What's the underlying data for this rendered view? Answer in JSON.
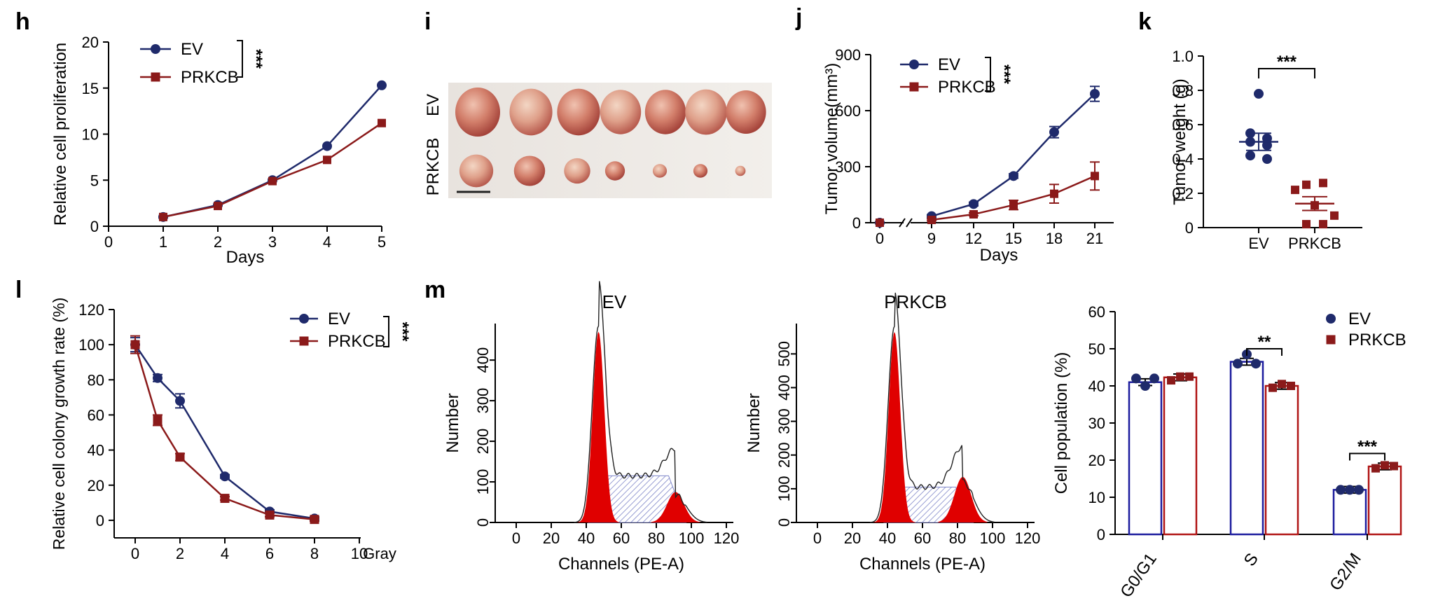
{
  "colors": {
    "ev": "#1f2a6b",
    "prkcb": "#8b1a1a",
    "ev_bar": "#1c1c9e",
    "prkcb_bar": "#b01414",
    "red_fill": "#e00000",
    "hatch": "#7f86c9"
  },
  "panels": {
    "h": {
      "label": "h",
      "type": "line",
      "xlabel": "Days",
      "ylabel": "Relative cell proliferation",
      "xlim": [
        0,
        5
      ],
      "ylim": [
        0,
        20
      ],
      "xticks": [
        "0",
        "1",
        "2",
        "3",
        "4",
        "5"
      ],
      "yticks": [
        "0",
        "5",
        "10",
        "15",
        "20"
      ],
      "legend": [
        "EV",
        "PRKCB"
      ],
      "significance": "***",
      "series": [
        {
          "name": "EV",
          "x": [
            1,
            2,
            3,
            4,
            5
          ],
          "y": [
            1.0,
            2.3,
            5.0,
            8.7,
            15.3
          ]
        },
        {
          "name": "PRKCB",
          "x": [
            1,
            2,
            3,
            4,
            5
          ],
          "y": [
            1.0,
            2.2,
            4.9,
            7.2,
            11.2
          ]
        }
      ]
    },
    "i": {
      "label": "i",
      "row_labels": [
        "EV",
        "PRKCB"
      ],
      "ev_tumor_sizes": [
        1.0,
        0.95,
        0.95,
        0.9,
        0.9,
        0.92,
        0.88
      ],
      "prkcb_tumor_sizes": [
        0.82,
        0.75,
        0.62,
        0.45,
        0.3,
        0.3,
        0.2
      ]
    },
    "j": {
      "label": "j",
      "type": "line",
      "xlabel": "Days",
      "ylabel": "Tumor volume(mm³)",
      "xticks": [
        "0",
        "9",
        "12",
        "15",
        "18",
        "21"
      ],
      "yticks": [
        "0",
        "300",
        "600",
        "900"
      ],
      "ylim": [
        0,
        900
      ],
      "legend": [
        "EV",
        "PRKCB"
      ],
      "significance": "***",
      "series": [
        {
          "name": "EV",
          "x": [
            0,
            9,
            12,
            15,
            18,
            21
          ],
          "y": [
            0,
            35,
            100,
            250,
            485,
            690
          ],
          "err": [
            0,
            8,
            10,
            12,
            30,
            40
          ]
        },
        {
          "name": "PRKCB",
          "x": [
            0,
            9,
            12,
            15,
            18,
            21
          ],
          "y": [
            0,
            15,
            45,
            95,
            155,
            250
          ],
          "err": [
            0,
            5,
            8,
            25,
            50,
            75
          ]
        }
      ]
    },
    "k": {
      "label": "k",
      "type": "scatter",
      "ylabel": "Tumor weight (g)",
      "categories": [
        "EV",
        "PRKCB"
      ],
      "yticks": [
        "0",
        "0.2",
        "0.4",
        "0.6",
        "0.8",
        "1.0"
      ],
      "ylim": [
        0,
        1.0
      ],
      "significance": "***",
      "ev_points": [
        0.78,
        0.55,
        0.52,
        0.5,
        0.48,
        0.42,
        0.4
      ],
      "prkcb_points": [
        0.26,
        0.25,
        0.22,
        0.13,
        0.07,
        0.02,
        0.02
      ],
      "ev_mean": 0.5,
      "ev_sem": 0.05,
      "prkcb_mean": 0.14,
      "prkcb_sem": 0.04
    },
    "l": {
      "label": "l",
      "type": "line",
      "xlabel": "Gray",
      "ylabel": "Relative cell colony growth rate (%)",
      "xticks": [
        "0",
        "2",
        "4",
        "6",
        "8",
        "10"
      ],
      "yticks": [
        "0",
        "20",
        "40",
        "60",
        "80",
        "100",
        "120"
      ],
      "xlim": [
        -1,
        10
      ],
      "ylim": [
        -10,
        120
      ],
      "legend": [
        "EV",
        "PRKCB"
      ],
      "significance": "***",
      "series": [
        {
          "name": "EV",
          "x": [
            0,
            1,
            2,
            4,
            6,
            8
          ],
          "y": [
            100,
            81,
            68,
            25,
            5,
            1
          ],
          "err": [
            4,
            2,
            4,
            1,
            1,
            1
          ]
        },
        {
          "name": "PRKCB",
          "x": [
            0,
            1,
            2,
            4,
            6,
            8
          ],
          "y": [
            100,
            57,
            36,
            12.5,
            3,
            0.5
          ],
          "err": [
            5,
            3,
            2,
            1,
            1,
            1
          ]
        }
      ]
    },
    "m": {
      "label": "m",
      "histograms": [
        {
          "title": "EV",
          "xlabel": "Channels (PE-A)",
          "ylabel": "Number",
          "xticks": [
            "0",
            "20",
            "40",
            "60",
            "80",
            "100",
            "120"
          ],
          "yticks": [
            "0",
            "100",
            "200",
            "300",
            "400"
          ],
          "ylim": [
            0,
            490
          ]
        },
        {
          "title": "PRKCB",
          "xlabel": "Channels (PE-A)",
          "ylabel": "Number",
          "xticks": [
            "0",
            "20",
            "40",
            "60",
            "80",
            "100",
            "120"
          ],
          "yticks": [
            "0",
            "100",
            "200",
            "300",
            "400",
            "500"
          ],
          "ylim": [
            0,
            590
          ]
        }
      ],
      "bar": {
        "type": "bar",
        "ylabel": "Cell population (%)",
        "categories": [
          "G0/G1",
          "S",
          "G2/M"
        ],
        "yticks": [
          "0",
          "10",
          "20",
          "30",
          "40",
          "50",
          "60"
        ],
        "ylim": [
          0,
          60
        ],
        "legend": [
          "EV",
          "PRKCB"
        ],
        "significance": [
          "",
          "**",
          "***"
        ],
        "series": [
          {
            "name": "EV",
            "values": [
              41,
              46.5,
              12
            ],
            "points": [
              [
                42,
                40,
                42
              ],
              [
                46,
                48.5,
                46
              ],
              [
                12,
                12,
                12
              ]
            ]
          },
          {
            "name": "PRKCB",
            "values": [
              42.3,
              40,
              18.3
            ],
            "points": [
              [
                41.5,
                42.5,
                42.5
              ],
              [
                39.5,
                40.5,
                40
              ],
              [
                17.8,
                18.6,
                18.4
              ]
            ]
          }
        ]
      }
    }
  }
}
